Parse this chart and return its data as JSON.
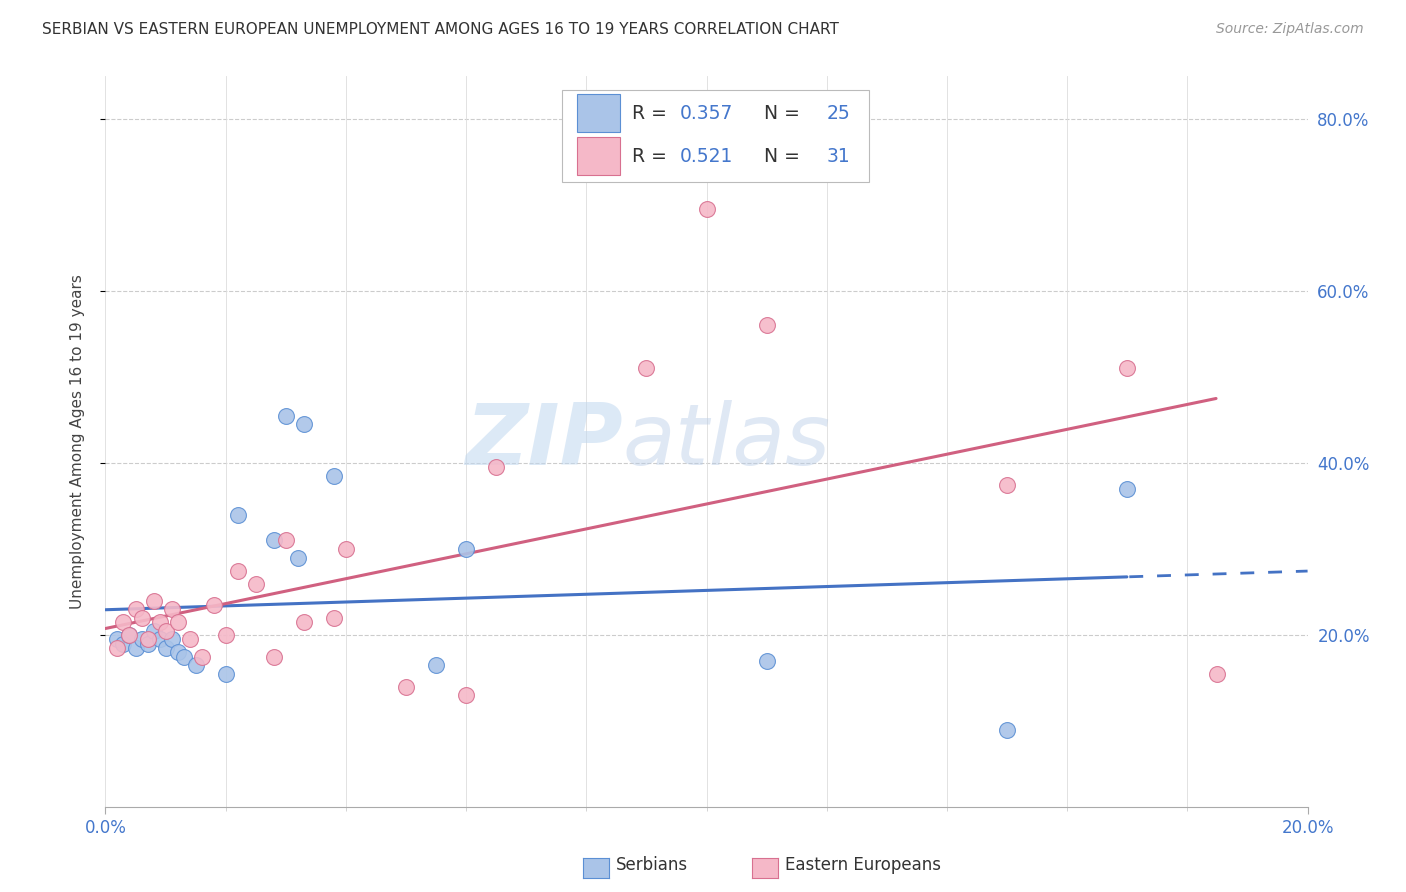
{
  "title": "SERBIAN VS EASTERN EUROPEAN UNEMPLOYMENT AMONG AGES 16 TO 19 YEARS CORRELATION CHART",
  "source": "Source: ZipAtlas.com",
  "ylabel": "Unemployment Among Ages 16 to 19 years",
  "xlim": [
    0.0,
    0.2
  ],
  "ylim": [
    0.0,
    0.85
  ],
  "y_ticks": [
    0.2,
    0.4,
    0.6,
    0.8
  ],
  "serbian_R": 0.357,
  "serbian_N": 25,
  "eastern_R": 0.521,
  "eastern_N": 31,
  "serbian_scatter_color": "#aac4e8",
  "serbian_scatter_edge": "#5b8fd4",
  "eastern_scatter_color": "#f5b8c8",
  "eastern_scatter_edge": "#d87090",
  "serbian_line_color": "#4472c4",
  "eastern_line_color": "#d06080",
  "watermark_color": "#ccddf0",
  "serbian_x": [
    0.002,
    0.003,
    0.004,
    0.005,
    0.006,
    0.007,
    0.008,
    0.009,
    0.01,
    0.011,
    0.012,
    0.013,
    0.015,
    0.02,
    0.022,
    0.028,
    0.03,
    0.032,
    0.033,
    0.038,
    0.055,
    0.06,
    0.11,
    0.15,
    0.17
  ],
  "serbian_y": [
    0.195,
    0.19,
    0.2,
    0.185,
    0.195,
    0.19,
    0.205,
    0.195,
    0.185,
    0.195,
    0.18,
    0.175,
    0.165,
    0.155,
    0.34,
    0.31,
    0.455,
    0.29,
    0.445,
    0.385,
    0.165,
    0.3,
    0.17,
    0.09,
    0.37
  ],
  "eastern_x": [
    0.002,
    0.003,
    0.004,
    0.005,
    0.006,
    0.007,
    0.008,
    0.009,
    0.01,
    0.011,
    0.012,
    0.014,
    0.016,
    0.018,
    0.02,
    0.022,
    0.025,
    0.028,
    0.03,
    0.033,
    0.038,
    0.04,
    0.05,
    0.06,
    0.065,
    0.09,
    0.1,
    0.11,
    0.15,
    0.17,
    0.185
  ],
  "eastern_y": [
    0.185,
    0.215,
    0.2,
    0.23,
    0.22,
    0.195,
    0.24,
    0.215,
    0.205,
    0.23,
    0.215,
    0.195,
    0.175,
    0.235,
    0.2,
    0.275,
    0.26,
    0.175,
    0.31,
    0.215,
    0.22,
    0.3,
    0.14,
    0.13,
    0.395,
    0.51,
    0.695,
    0.56,
    0.375,
    0.51,
    0.155
  ]
}
